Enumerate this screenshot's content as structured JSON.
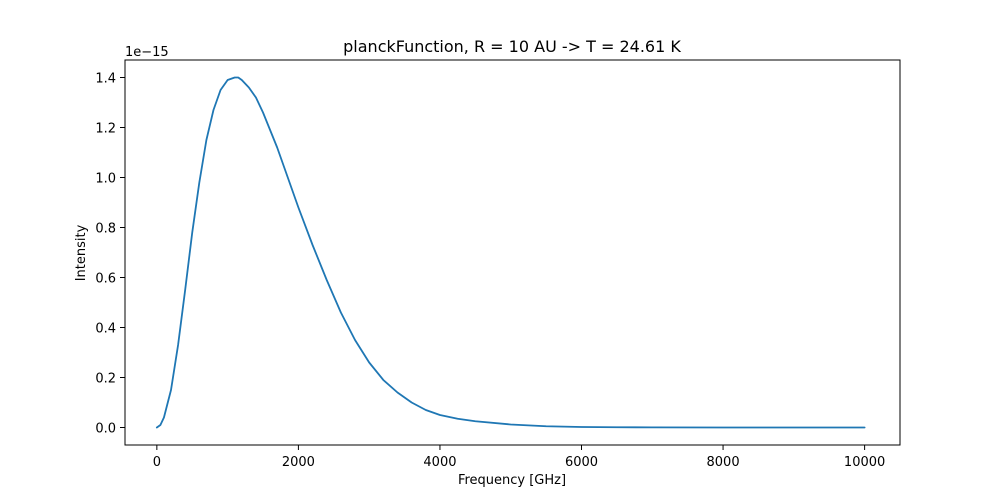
{
  "chart_data": {
    "type": "line",
    "title": "planckFunction, R = 10 AU -> T = 24.61 K",
    "xlabel": "Frequency [GHz]",
    "ylabel": "Intensity",
    "y_offset_label": "1e−15",
    "y_multiplier": 1e-15,
    "xlim": [
      -450,
      10500
    ],
    "ylim": [
      -0.07,
      1.47
    ],
    "x_ticks": [
      0,
      2000,
      4000,
      6000,
      8000,
      10000
    ],
    "x_tick_labels": [
      "0",
      "2000",
      "4000",
      "6000",
      "8000",
      "10000"
    ],
    "y_ticks": [
      0.0,
      0.2,
      0.4,
      0.6,
      0.8,
      1.0,
      1.2,
      1.4
    ],
    "y_tick_labels": [
      "0.0",
      "0.2",
      "0.4",
      "0.6",
      "0.8",
      "1.0",
      "1.2",
      "1.4"
    ],
    "grid": false,
    "series": [
      {
        "color": "#1f77b4",
        "x": [
          0,
          50,
          100,
          200,
          300,
          400,
          500,
          600,
          700,
          800,
          900,
          1000,
          1100,
          1150,
          1200,
          1300,
          1400,
          1500,
          1600,
          1700,
          1800,
          1900,
          2000,
          2200,
          2400,
          2600,
          2800,
          3000,
          3200,
          3400,
          3600,
          3800,
          4000,
          4250,
          4500,
          5000,
          5500,
          6000,
          6500,
          7000,
          8000,
          9000,
          10000
        ],
        "values": [
          0.0,
          0.01,
          0.04,
          0.15,
          0.33,
          0.55,
          0.78,
          0.98,
          1.15,
          1.27,
          1.35,
          1.39,
          1.4,
          1.4,
          1.39,
          1.36,
          1.32,
          1.26,
          1.19,
          1.12,
          1.04,
          0.96,
          0.88,
          0.73,
          0.59,
          0.46,
          0.35,
          0.26,
          0.19,
          0.14,
          0.1,
          0.07,
          0.05,
          0.035,
          0.025,
          0.012,
          0.005,
          0.002,
          0.001,
          0.0005,
          0.0001,
          0.0,
          0.0
        ]
      }
    ]
  }
}
